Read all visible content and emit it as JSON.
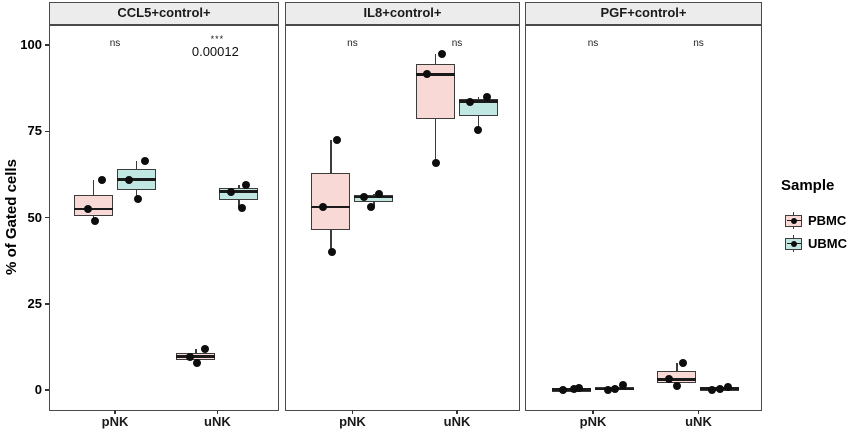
{
  "legend": {
    "title": "Sample",
    "items": [
      {
        "label": "PBMC",
        "color": "#f8d9d5"
      },
      {
        "label": "UBMC",
        "color": "#c1e7e3"
      }
    ]
  },
  "chart_data": {
    "type": "boxplot",
    "title": "",
    "ylabel": "% of Gated cells",
    "xlabel": "",
    "ylim": [
      -6,
      106
    ],
    "yticks": [
      0,
      25,
      50,
      75,
      100
    ],
    "grid": false,
    "legend_position": "right",
    "categories": [
      "pNK",
      "uNK"
    ],
    "series": [
      "PBMC",
      "UBMC"
    ],
    "series_colors": {
      "PBMC": "#f8d9d5",
      "UBMC": "#c1e7e3"
    },
    "facets": [
      {
        "title": "CCL5+control+",
        "annotations": [
          {
            "label": "ns"
          },
          {
            "label": "***",
            "p_value": "0.00012"
          }
        ],
        "groups": {
          "pNK": {
            "PBMC": {
              "q1": 50.5,
              "median": 52.5,
              "q3": 56.5,
              "whisker_low": 49,
              "whisker_high": 61,
              "points": [
                [
                  61,
                  8.5
                ],
                [
                  52.5,
                  -6
                ],
                [
                  49,
                  1
                ]
              ]
            },
            "UBMC": {
              "q1": 58,
              "median": 61,
              "q3": 64,
              "whisker_low": 55.5,
              "whisker_high": 66.5,
              "points": [
                [
                  66.5,
                  8
                ],
                [
                  61,
                  -8
                ],
                [
                  55.5,
                  1
                ]
              ]
            }
          },
          "uNK": {
            "PBMC": {
              "q1": 8.7,
              "median": 9.7,
              "q3": 10.8,
              "whisker_low": 7.7,
              "whisker_high": 11.8,
              "points": [
                [
                  11.8,
                  9
                ],
                [
                  9.7,
                  -6
                ],
                [
                  7.7,
                  1
                ]
              ]
            },
            "UBMC": {
              "q1": 55,
              "median": 57.5,
              "q3": 58.5,
              "whisker_low": 52.7,
              "whisker_high": 59.4,
              "points": [
                [
                  59.4,
                  7
                ],
                [
                  57.5,
                  -8
                ],
                [
                  52.7,
                  3
                ]
              ]
            }
          }
        }
      },
      {
        "title": "IL8+control+",
        "annotations": [
          {
            "label": "ns"
          },
          {
            "label": "ns"
          }
        ],
        "groups": {
          "pNK": {
            "PBMC": {
              "q1": 46.5,
              "median": 53,
              "q3": 62.8,
              "whisker_low": 40,
              "whisker_high": 72.5,
              "points": [
                [
                  72.5,
                  6
                ],
                [
                  53,
                  -8
                ],
                [
                  40,
                  1
                ]
              ]
            },
            "UBMC": {
              "q1": 54.5,
              "median": 56,
              "q3": 56.4,
              "whisker_low": 53,
              "whisker_high": 56.8,
              "points": [
                [
                  56.8,
                  5
                ],
                [
                  56,
                  -10
                ],
                [
                  53,
                  -3
                ]
              ]
            }
          },
          "uNK": {
            "PBMC": {
              "q1": 78.6,
              "median": 91.5,
              "q3": 94.4,
              "whisker_low": 65.7,
              "whisker_high": 97.3,
              "points": [
                [
                  97.3,
                  6
                ],
                [
                  91.5,
                  -9
                ],
                [
                  65.7,
                  0
                ]
              ]
            },
            "UBMC": {
              "q1": 79.5,
              "median": 83.6,
              "q3": 84.3,
              "whisker_low": 75.4,
              "whisker_high": 85,
              "points": [
                [
                  85,
                  8
                ],
                [
                  83.6,
                  -9
                ],
                [
                  75.4,
                  -1
                ]
              ]
            }
          }
        }
      },
      {
        "title": "PGF+control+",
        "annotations": [
          {
            "label": "ns"
          },
          {
            "label": "ns"
          }
        ],
        "groups": {
          "pNK": {
            "PBMC": {
              "q1": 0.1,
              "median": 0.2,
              "q3": 0.35,
              "whisker_low": 0,
              "whisker_high": 0.5,
              "points": [
                [
                  0.5,
                  7
                ],
                [
                  0.2,
                  2
                ],
                [
                  0,
                  -9
                ]
              ]
            },
            "UBMC": {
              "q1": 0.15,
              "median": 0.3,
              "q3": 0.85,
              "whisker_low": 0,
              "whisker_high": 1.4,
              "points": [
                [
                  1.4,
                  8
                ],
                [
                  0.3,
                  0
                ],
                [
                  0,
                  -7
                ]
              ]
            }
          },
          "uNK": {
            "PBMC": {
              "q1": 2.1,
              "median": 3.1,
              "q3": 5.4,
              "whisker_low": 1.2,
              "whisker_high": 7.7,
              "points": [
                [
                  7.7,
                  6
                ],
                [
                  3.1,
                  -8
                ],
                [
                  1.2,
                  0
                ]
              ]
            },
            "UBMC": {
              "q1": 0.2,
              "median": 0.4,
              "q3": 0.6,
              "whisker_low": 0.1,
              "whisker_high": 0.8,
              "points": [
                [
                  0.8,
                  8
                ],
                [
                  0.4,
                  0
                ],
                [
                  0.1,
                  -8
                ]
              ]
            }
          }
        }
      }
    ]
  }
}
